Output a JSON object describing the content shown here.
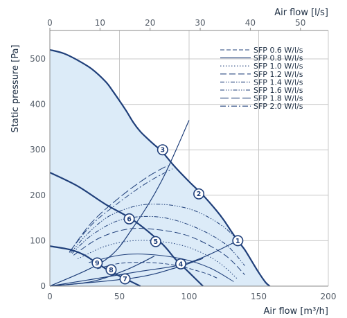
{
  "chart_data": {
    "type": "line",
    "title": "",
    "xlabel": "Air flow [m³/h]",
    "ylabel": "Static pressure [Pa]",
    "x2label": "Air flow [l/s]",
    "xlim": [
      0,
      200
    ],
    "ylim": [
      0,
      540
    ],
    "x2lim": [
      0,
      55.56
    ],
    "xticks": [
      0,
      50,
      100,
      150,
      200
    ],
    "yticks": [
      0,
      100,
      200,
      300,
      400,
      500
    ],
    "x2ticks": [
      0,
      10,
      20,
      30,
      40,
      50
    ],
    "grid": true,
    "legend_position": "top-right",
    "colors": {
      "area_fill": "#dcebf8",
      "fan_curve": "#1f3f7a",
      "grid": "#c8c8c8",
      "axis": "#888888",
      "marker_stroke": "#1f3f7a",
      "marker_fill": "#ffffff"
    },
    "operating_area": {
      "x": [
        0,
        10,
        20,
        30,
        40,
        45,
        50,
        55,
        60,
        65,
        70,
        75,
        80,
        85,
        90,
        100,
        110,
        120,
        125,
        130,
        135,
        140,
        145,
        150,
        155,
        158,
        0
      ],
      "y": [
        520,
        512,
        497,
        478,
        450,
        430,
        408,
        385,
        360,
        340,
        325,
        311,
        298,
        280,
        262,
        230,
        200,
        165,
        145,
        122,
        100,
        80,
        55,
        30,
        8,
        0,
        0
      ]
    },
    "fan_curves": [
      {
        "x": [
          0,
          10,
          20,
          30,
          40,
          45,
          50,
          55,
          60,
          65,
          70,
          75,
          80,
          85,
          90,
          100,
          110,
          120,
          125,
          130,
          135,
          140,
          145,
          150,
          155,
          158
        ],
        "y": [
          520,
          512,
          497,
          478,
          450,
          430,
          408,
          385,
          360,
          340,
          325,
          311,
          298,
          280,
          262,
          230,
          200,
          165,
          145,
          122,
          100,
          80,
          55,
          30,
          8,
          0
        ]
      },
      {
        "x": [
          0,
          20,
          40,
          60,
          80,
          90,
          100,
          110
        ],
        "y": [
          250,
          220,
          180,
          145,
          95,
          60,
          30,
          0
        ]
      },
      {
        "x": [
          0,
          15,
          25,
          35,
          45,
          55,
          65
        ],
        "y": [
          88,
          80,
          68,
          48,
          30,
          15,
          0
        ]
      }
    ],
    "system_curves": [
      {
        "x": [
          0,
          40,
          60,
          80,
          100
        ],
        "y": [
          0,
          58,
          130,
          230,
          365
        ]
      },
      {
        "x": [
          0,
          60,
          100,
          135
        ],
        "y": [
          0,
          30,
          52,
          100
        ]
      },
      {
        "x": [
          0,
          60,
          90,
          110
        ],
        "y": [
          0,
          18,
          40,
          61
        ]
      },
      {
        "x": [
          0,
          30,
          55,
          75
        ],
        "y": [
          0,
          10,
          36,
          66
        ]
      }
    ],
    "sfp_curves": [
      {
        "name": "SFP 0.6 W/l/s",
        "dash": "6,3",
        "x": [
          34,
          50,
          70,
          90,
          110,
          120
        ],
        "y": [
          38,
          50,
          52,
          46,
          30,
          18
        ]
      },
      {
        "name": "SFP 0.8 W/l/s",
        "dash": "",
        "x": [
          28,
          50,
          70,
          95,
          115,
          132
        ],
        "y": [
          52,
          68,
          70,
          60,
          40,
          10
        ]
      },
      {
        "name": "SFP 1.0 W/l/s",
        "dash": "1.5,2.5",
        "x": [
          20,
          40,
          60,
          80,
          100,
          120,
          135
        ],
        "y": [
          60,
          88,
          100,
          98,
          85,
          55,
          15
        ]
      },
      {
        "name": "SFP 1.2 W/l/s",
        "dash": "9,4",
        "x": [
          17,
          35,
          55,
          75,
          100,
          125,
          140
        ],
        "y": [
          68,
          105,
          125,
          125,
          110,
          70,
          25
        ]
      },
      {
        "name": "SFP 1.4 W/l/s",
        "dash": "6,2,1.5,2,1.5,2",
        "x": [
          16,
          30,
          50,
          75,
          100,
          125,
          140
        ],
        "y": [
          72,
          112,
          145,
          153,
          135,
          95,
          45
        ]
      },
      {
        "name": "SFP 1.6 W/l/s",
        "dash": "6,2,1.5,2,1.5,2,1.5,2",
        "x": [
          15,
          28,
          45,
          70,
          100,
          125,
          140
        ],
        "y": [
          73,
          118,
          158,
          180,
          170,
          130,
          80
        ]
      },
      {
        "name": "SFP 1.8 W/l/s",
        "dash": "12,4",
        "x": [
          14,
          30,
          50,
          70,
          85
        ],
        "y": [
          74,
          140,
          195,
          240,
          266
        ]
      },
      {
        "name": "SFP 2.0 W/l/s",
        "dash": "8,3,2,3",
        "x": [
          14,
          30,
          50,
          70,
          88
        ],
        "y": [
          75,
          135,
          185,
          228,
          258
        ]
      }
    ],
    "operating_points": [
      {
        "label": "1",
        "x": 135,
        "y": 100
      },
      {
        "label": "2",
        "x": 107,
        "y": 203
      },
      {
        "label": "3",
        "x": 81,
        "y": 300
      },
      {
        "label": "4",
        "x": 94,
        "y": 49
      },
      {
        "label": "5",
        "x": 76,
        "y": 98
      },
      {
        "label": "6",
        "x": 57,
        "y": 148
      },
      {
        "label": "7",
        "x": 54,
        "y": 16
      },
      {
        "label": "8",
        "x": 44,
        "y": 36
      },
      {
        "label": "9",
        "x": 34,
        "y": 51
      }
    ]
  }
}
